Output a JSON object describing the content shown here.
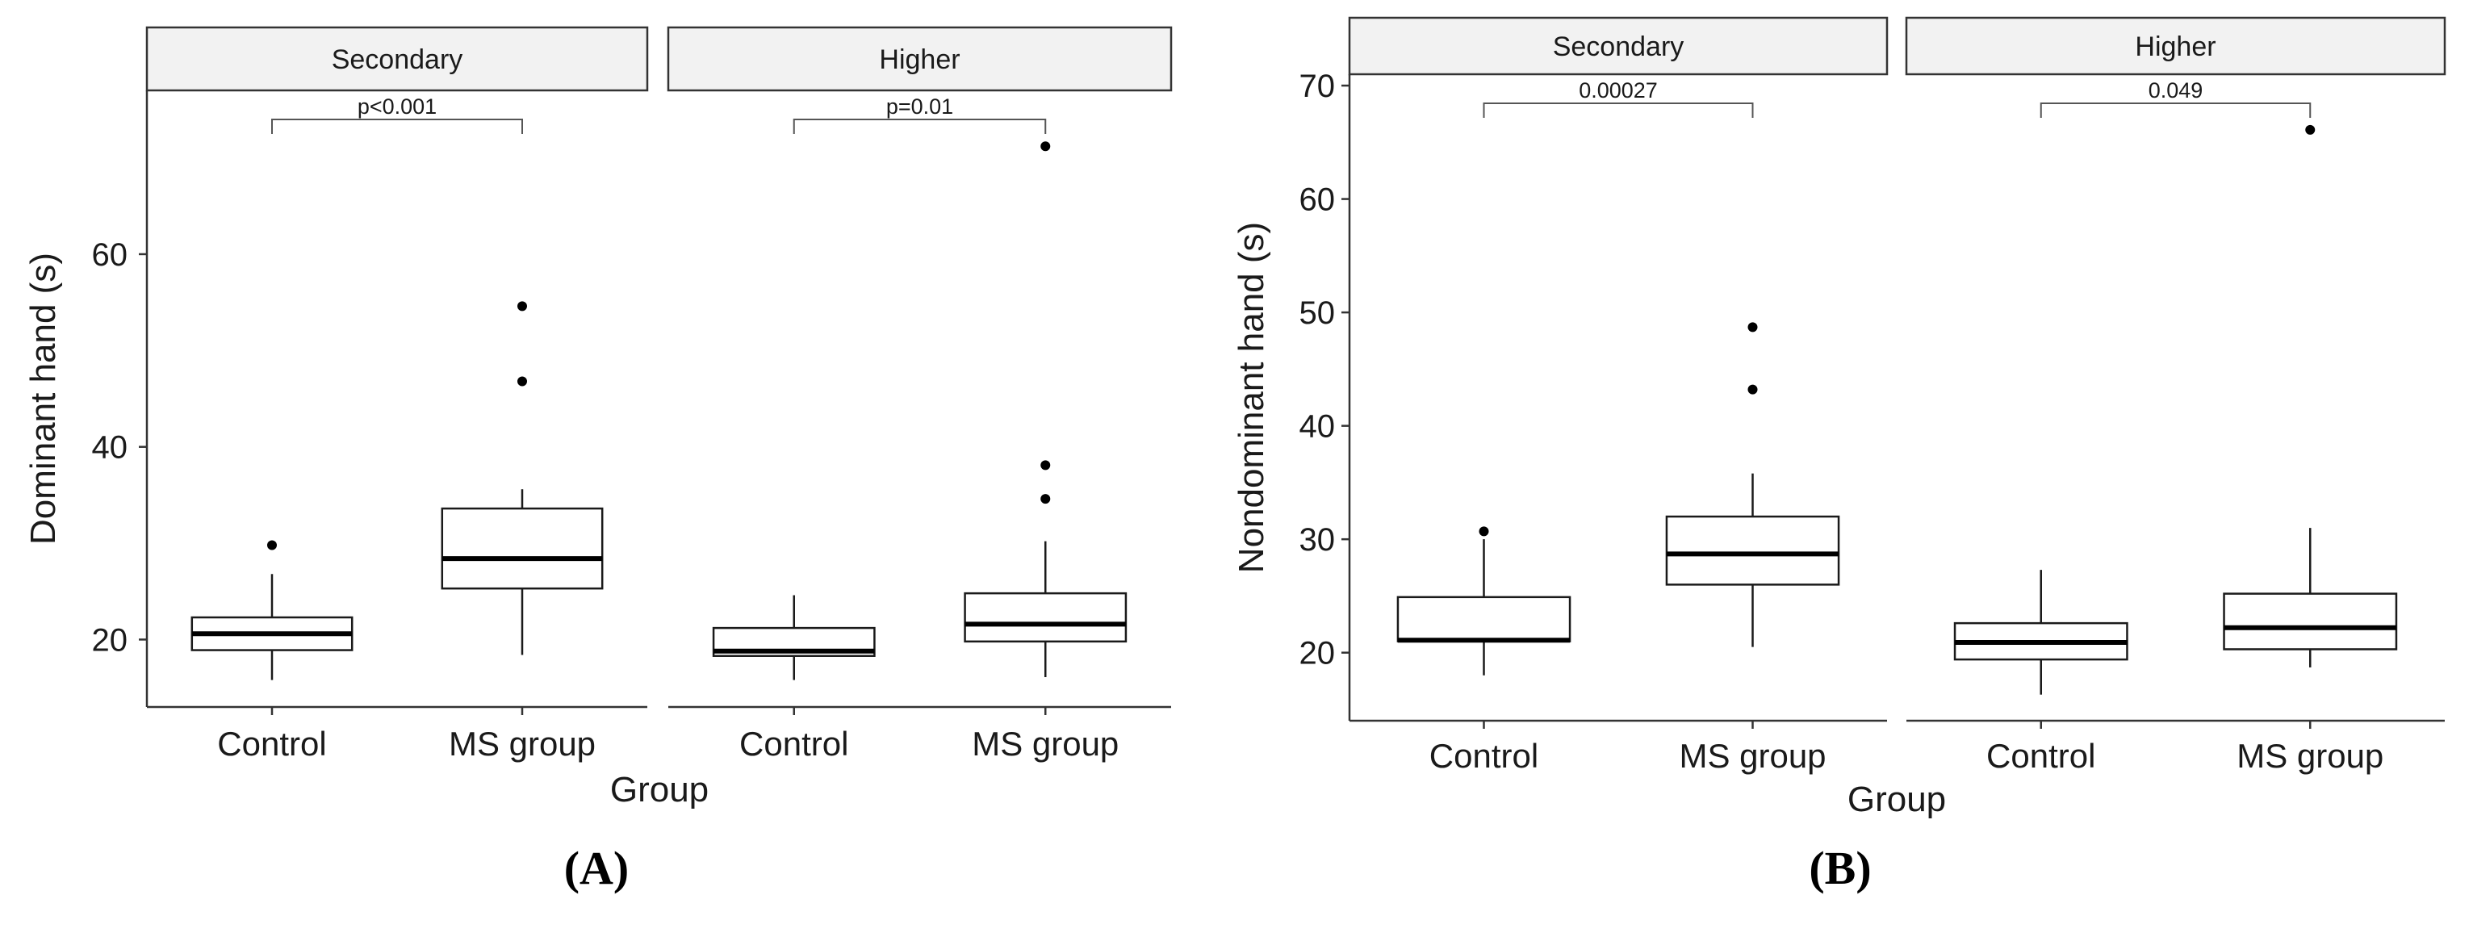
{
  "chart_data": [
    {
      "type": "boxplot",
      "panel_label": "(A)",
      "ylabel": "Dominant hand (s)",
      "xlabel": "Group",
      "ylim": [
        13,
        77
      ],
      "yticks": [
        20,
        40,
        60
      ],
      "categories": [
        "Control",
        "MS group"
      ],
      "facets": [
        {
          "name": "Secondary",
          "pvalue": "p<0.001",
          "boxes": [
            {
              "group": "Control",
              "min": 15.8,
              "q1": 18.9,
              "median": 20.6,
              "q3": 22.3,
              "max": 26.8,
              "outliers": [
                29.8
              ]
            },
            {
              "group": "MS group",
              "min": 18.4,
              "q1": 25.3,
              "median": 28.4,
              "q3": 33.6,
              "max": 35.6,
              "outliers": [
                46.8,
                54.6
              ]
            }
          ]
        },
        {
          "name": "Higher",
          "pvalue": "p=0.01",
          "boxes": [
            {
              "group": "Control",
              "min": 15.8,
              "q1": 18.3,
              "median": 18.8,
              "q3": 21.2,
              "max": 24.6,
              "outliers": []
            },
            {
              "group": "MS group",
              "min": 16.1,
              "q1": 19.8,
              "median": 21.6,
              "q3": 24.8,
              "max": 30.2,
              "outliers": [
                34.6,
                38.1,
                71.2
              ]
            }
          ]
        }
      ]
    },
    {
      "type": "boxplot",
      "panel_label": "(B)",
      "ylabel": "Nondominant hand (s)",
      "xlabel": "Group",
      "ylim": [
        14,
        71
      ],
      "yticks": [
        20,
        30,
        40,
        50,
        60,
        70
      ],
      "categories": [
        "Control",
        "MS group"
      ],
      "facets": [
        {
          "name": "Secondary",
          "pvalue": "0.00027",
          "boxes": [
            {
              "group": "Control",
              "min": 18.0,
              "q1": 21.0,
              "median": 21.1,
              "q3": 24.9,
              "max": 30.0,
              "outliers": [
                30.7
              ]
            },
            {
              "group": "MS group",
              "min": 20.5,
              "q1": 26.0,
              "median": 28.7,
              "q3": 32.0,
              "max": 35.8,
              "outliers": [
                43.2,
                48.7
              ]
            }
          ]
        },
        {
          "name": "Higher",
          "pvalue": "0.049",
          "boxes": [
            {
              "group": "Control",
              "min": 16.3,
              "q1": 19.4,
              "median": 20.9,
              "q3": 22.6,
              "max": 27.3,
              "outliers": []
            },
            {
              "group": "MS group",
              "min": 18.7,
              "q1": 20.3,
              "median": 22.2,
              "q3": 25.2,
              "max": 31.0,
              "outliers": [
                66.1
              ]
            }
          ]
        }
      ]
    }
  ]
}
